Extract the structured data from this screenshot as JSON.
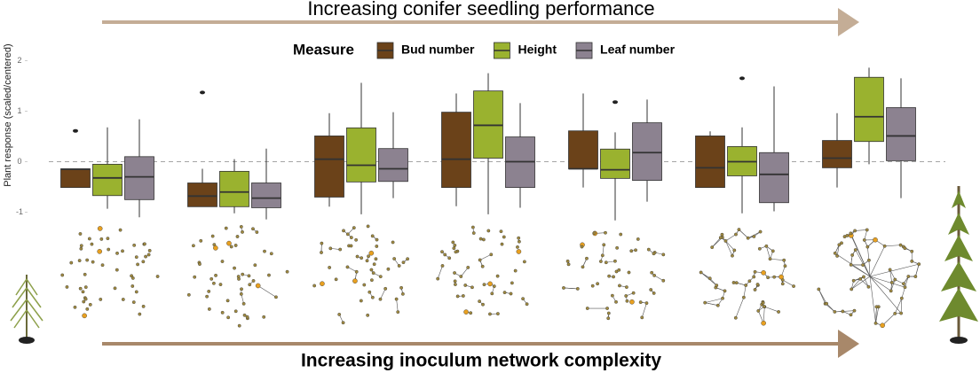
{
  "chart_data": {
    "type": "box",
    "title": "Increasing conifer seedling performance",
    "subtitle": "Increasing inoculum network complexity",
    "y_label": "Plant response (scaled/centered)",
    "legend_title": "Measure",
    "categories": [
      null,
      null,
      null,
      null,
      null,
      null,
      null
    ],
    "ylim": [
      -1.2,
      2.2
    ],
    "yticks": [
      -1,
      0,
      1,
      2
    ],
    "reference_line": 0,
    "series": [
      {
        "name": "Bud number",
        "color": "#6b4219",
        "low": [
          -0.51,
          -0.89,
          -0.89,
          -0.88,
          -0.51,
          -0.51,
          -0.51
        ],
        "q1": [
          -0.51,
          -0.89,
          -0.7,
          -0.51,
          -0.14,
          -0.51,
          -0.12
        ],
        "median": [
          -0.15,
          -0.68,
          0.05,
          0.05,
          -0.14,
          -0.12,
          0.07
        ],
        "q3": [
          -0.14,
          -0.42,
          0.51,
          0.98,
          0.61,
          0.51,
          0.42
        ],
        "high": [
          -0.14,
          -0.14,
          0.96,
          1.35,
          1.35,
          0.6,
          0.96
        ],
        "outliers": [
          [
            0.61
          ],
          [
            1.37
          ],
          [],
          [],
          [],
          [],
          []
        ]
      },
      {
        "name": "Height",
        "color": "#9ab22f",
        "low": [
          -0.93,
          -1.02,
          -1.04,
          -1.04,
          -1.16,
          -1.02,
          -0.05
        ],
        "q1": [
          -0.67,
          -0.89,
          -0.4,
          0.07,
          -0.33,
          -0.28,
          0.4
        ],
        "median": [
          -0.32,
          -0.6,
          -0.07,
          0.72,
          -0.16,
          0,
          0.89
        ],
        "q3": [
          -0.05,
          -0.19,
          0.67,
          1.4,
          0.25,
          0.3,
          1.67
        ],
        "high": [
          0.68,
          0.05,
          1.56,
          1.75,
          0.58,
          0.68,
          1.86
        ],
        "outliers": [
          [],
          [],
          [],
          [],
          [
            1.18
          ],
          [
            1.65
          ],
          []
        ]
      },
      {
        "name": "Leaf number",
        "color": "#8c8290",
        "low": [
          -1.1,
          -1.14,
          -0.72,
          -0.91,
          -0.79,
          -0.98,
          -0.72
        ],
        "q1": [
          -0.75,
          -0.91,
          -0.39,
          -0.51,
          -0.37,
          -0.81,
          0.02
        ],
        "median": [
          -0.3,
          -0.72,
          -0.14,
          0,
          0.18,
          -0.25,
          0.51
        ],
        "q3": [
          0.1,
          -0.42,
          0.26,
          0.49,
          0.77,
          0.18,
          1.07
        ],
        "high": [
          0.84,
          0.26,
          0.98,
          1.16,
          1.23,
          1.49,
          1.65
        ],
        "outliers": [
          [],
          [],
          [],
          [],
          [],
          [],
          []
        ]
      }
    ]
  }
}
